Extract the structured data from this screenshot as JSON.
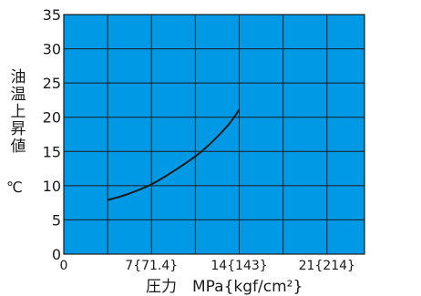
{
  "chart_data": {
    "type": "line",
    "ylabel": "油温上昇値",
    "yunit": "℃",
    "xlabel": "圧力　MPa{kgf/cm²}",
    "xlim": [
      0,
      24
    ],
    "ylim": [
      0,
      35
    ],
    "x_ticks": [
      {
        "value": 0,
        "label": "0"
      },
      {
        "value": 7,
        "label": "7{71.4}"
      },
      {
        "value": 14,
        "label": "14{143}"
      },
      {
        "value": 21,
        "label": "21{214}"
      }
    ],
    "y_ticks": [
      0,
      5,
      10,
      15,
      20,
      25,
      30,
      35
    ],
    "x_grid": [
      0,
      3.5,
      7,
      10.5,
      14,
      17.5,
      21,
      24
    ],
    "grid": true,
    "plot_background": "#0099e6",
    "grid_color": "#1a1a1a",
    "line_color": "#1a1a1a",
    "series": [
      {
        "x": [
          3.5,
          5,
          7,
          9,
          11,
          13,
          14
        ],
        "y": [
          7.9,
          8.7,
          10.2,
          12.4,
          15.0,
          18.6,
          21.1
        ]
      }
    ]
  }
}
